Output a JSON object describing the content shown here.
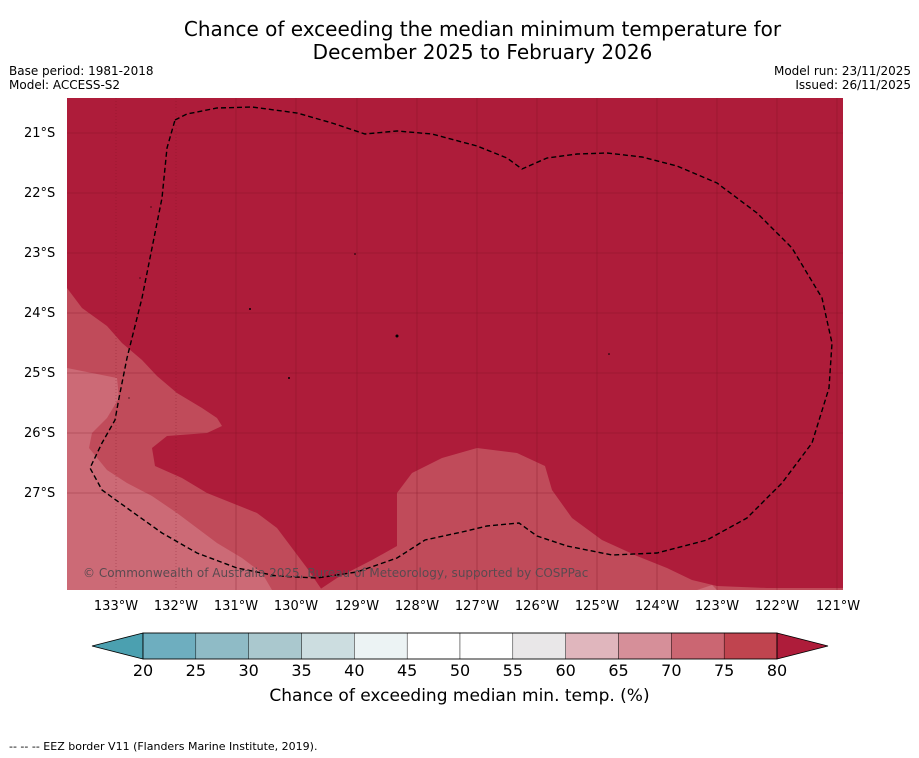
{
  "title": {
    "line1": "Chance of exceeding the median minimum temperature for",
    "line2": "December 2025 to February 2026"
  },
  "meta": {
    "base_period": "Base period: 1981-2018",
    "model": "Model: ACCESS-S2",
    "model_run": "Model run: 23/11/2025",
    "issued": "Issued: 26/11/2025"
  },
  "map": {
    "lat_labels": [
      "21°S",
      "22°S",
      "23°S",
      "24°S",
      "25°S",
      "26°S",
      "27°S"
    ],
    "lon_labels": [
      "133°W",
      "132°W",
      "131°W",
      "130°W",
      "129°W",
      "128°W",
      "127°W",
      "126°W",
      "125°W",
      "124°W",
      "123°W",
      "122°W",
      "121°W"
    ],
    "copyright": "© Commonwealth of Australia 2025, Bureau of Meteorology, supported by COSPPac",
    "colors": {
      "c80plus": "#ae1c3a",
      "c75": "#c04b5a",
      "c70": "#cc6a76",
      "grid": "#7a1020"
    }
  },
  "colorbar": {
    "ticks": [
      "20",
      "25",
      "30",
      "35",
      "40",
      "45",
      "50",
      "55",
      "60",
      "65",
      "70",
      "75",
      "80"
    ],
    "colors": [
      "#4ba0b0",
      "#6eaebf",
      "#8fbbc6",
      "#aac8ce",
      "#ccdde0",
      "#ecf3f4",
      "#ffffff",
      "#ffffff",
      "#e9e7e8",
      "#e0b6bd",
      "#d68f99",
      "#cb6672",
      "#c0444f",
      "#ae1c3a"
    ],
    "label": "Chance of exceeding median min. temp. (%)"
  },
  "footnote": "--  --  -- EEZ border V11 (Flanders Marine Institute, 2019)."
}
